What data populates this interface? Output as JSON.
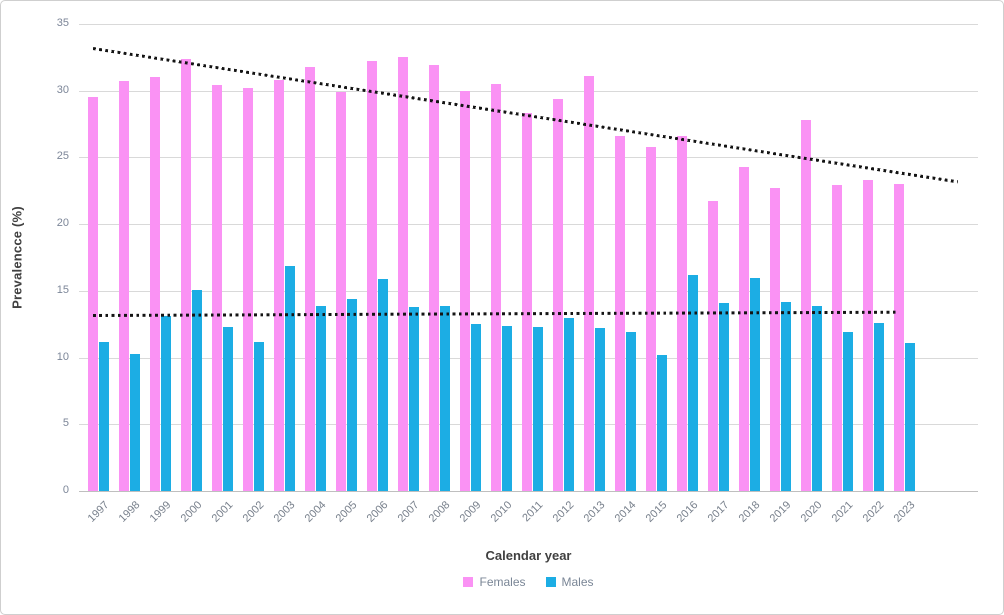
{
  "axes": {
    "x_title": "Calendar year",
    "y_title": "Prevalencce (%)"
  },
  "legend": {
    "females_label": "Females",
    "males_label": "Males"
  },
  "colors": {
    "female": "#FA92F4",
    "male": "#1CADE4",
    "gridline": "#D9D9D9",
    "axis_line": "#BFBFBF",
    "y_tick_label": "#7C8698",
    "x_tick_label": "#78808C",
    "axis_title": "#404040",
    "trendline": "#141414"
  },
  "chart_data": {
    "type": "bar",
    "title": "",
    "xlabel": "Calendar year",
    "ylabel": "Prevalencce (%)",
    "categories": [
      "1997",
      "1998",
      "1999",
      "2000",
      "2001",
      "2002",
      "2003",
      "2004",
      "2005",
      "2006",
      "2007",
      "2008",
      "2009",
      "2010",
      "2011",
      "2012",
      "2013",
      "2014",
      "2015",
      "2016",
      "2017",
      "2018",
      "2019",
      "2020",
      "2021",
      "2022",
      "2023"
    ],
    "series": [
      {
        "name": "Females",
        "color": "#FA92F4",
        "values": [
          29.5,
          30.7,
          31.0,
          32.4,
          30.4,
          30.2,
          30.8,
          31.8,
          29.9,
          32.2,
          32.5,
          31.9,
          30.0,
          30.5,
          28.3,
          29.4,
          31.1,
          26.6,
          25.8,
          26.6,
          21.7,
          24.3,
          22.7,
          27.8,
          22.9,
          23.3,
          23.0
        ]
      },
      {
        "name": "Males",
        "color": "#1CADE4",
        "values": [
          11.2,
          10.3,
          13.1,
          15.1,
          12.3,
          11.2,
          16.9,
          13.9,
          14.4,
          15.9,
          13.8,
          13.9,
          12.5,
          12.4,
          12.3,
          13.0,
          12.2,
          11.9,
          10.2,
          16.2,
          14.1,
          16.0,
          14.2,
          13.9,
          11.9,
          12.6,
          11.1
        ]
      }
    ],
    "ylim": [
      0,
      35
    ],
    "ytick_step": 5,
    "grid": "horizontal",
    "legend_position": "bottom",
    "trendlines": [
      {
        "name": "females-trend",
        "style": "dotted",
        "color": "#141414",
        "start_index": 0,
        "start_value": 33.2,
        "end_index": 27.9,
        "end_value": 23.2
      },
      {
        "name": "males-trend",
        "style": "dotted",
        "color": "#141414",
        "start_index": 0,
        "start_value": 13.15,
        "end_index": 26,
        "end_value": 13.4
      }
    ]
  }
}
